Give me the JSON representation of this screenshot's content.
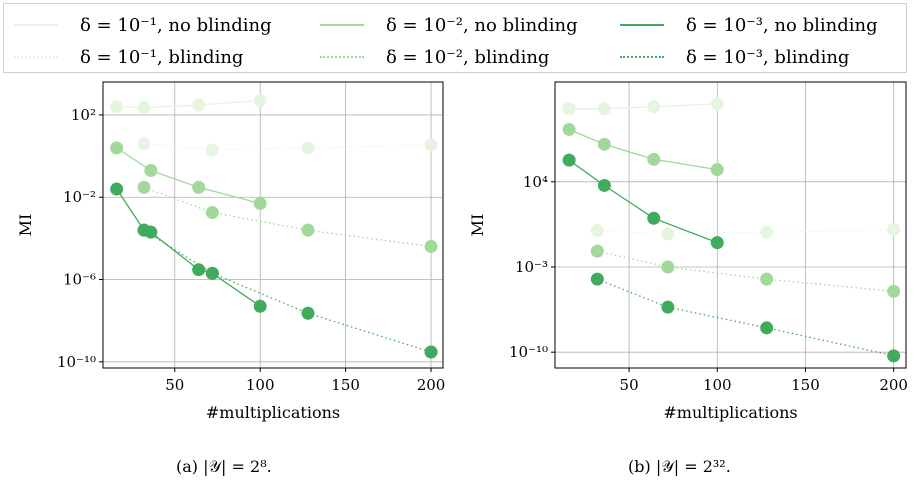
{
  "legend": {
    "items": [
      {
        "label": "δ = 10⁻¹, no blinding",
        "color": "#e5f5e0",
        "style": "solid"
      },
      {
        "label": "δ = 10⁻², no blinding",
        "color": "#a1d99b",
        "style": "solid"
      },
      {
        "label": "δ = 10⁻³, no blinding",
        "color": "#41ab5d",
        "style": "solid"
      },
      {
        "label": "δ = 10⁻¹, blinding",
        "color": "#e5f5e0",
        "style": "dotted"
      },
      {
        "label": "δ = 10⁻², blinding",
        "color": "#a1d99b",
        "style": "dotted"
      },
      {
        "label": "δ = 10⁻³, blinding",
        "color": "#41ab5d",
        "style": "dotted"
      }
    ]
  },
  "captions": {
    "a": "(a) |𝒴| = 2⁸.",
    "b": "(b) |𝒴| = 2³².",
    "a_label": "(a)",
    "b_label": "(b)"
  },
  "chart_data": [
    {
      "type": "line",
      "id": "a",
      "xlabel": "#multiplications",
      "ylabel": "MI",
      "xlim": [
        8,
        207
      ],
      "ylim_log10": [
        -10.3,
        3.6
      ],
      "y_scale": "log",
      "xticks": [
        50,
        100,
        150,
        200
      ],
      "yticks": [
        {
          "exp": 2,
          "label": "10²"
        },
        {
          "exp": -2,
          "label": "10⁻²"
        },
        {
          "exp": -6,
          "label": "10⁻⁶"
        },
        {
          "exp": -10,
          "label": "10⁻¹⁰"
        }
      ],
      "grid": true,
      "series": [
        {
          "name": "δ = 10⁻¹, no blinding",
          "color": "#e5f5e0",
          "style": "solid",
          "x": [
            16,
            32,
            64,
            100
          ],
          "y": [
            "2.5e2",
            "2.3e2",
            "3e2",
            "5e2"
          ]
        },
        {
          "name": "δ = 10⁻¹, blinding",
          "color": "#e5f5e0",
          "style": "dotted",
          "x": [
            32,
            72,
            128,
            200
          ],
          "y": [
            "4",
            "2",
            "2.5",
            "3.5"
          ]
        },
        {
          "name": "δ = 10⁻², no blinding",
          "color": "#a1d99b",
          "style": "solid",
          "x": [
            16,
            36,
            64,
            100
          ],
          "y": [
            "2.5",
            "0.2",
            "0.03",
            "0.005"
          ]
        },
        {
          "name": "δ = 10⁻², blinding",
          "color": "#a1d99b",
          "style": "dotted",
          "x": [
            32,
            72,
            128,
            200
          ],
          "y": [
            "0.03",
            "0.0018",
            "2.5e-4",
            "4e-5"
          ]
        },
        {
          "name": "δ = 10⁻³, no blinding",
          "color": "#41ab5d",
          "style": "solid",
          "x": [
            16,
            32,
            36,
            64,
            72,
            100
          ],
          "y": [
            "0.025",
            "2.5e-4",
            "2e-4",
            "3e-6",
            "2e-6",
            "5e-8"
          ]
        },
        {
          "name": "δ = 10⁻³, blinding",
          "color": "#41ab5d",
          "style": "dotted",
          "x": [
            32,
            72,
            128,
            200
          ],
          "y": [
            "2.5e-4",
            "2e-6",
            "2.3e-8",
            "3e-10"
          ]
        }
      ]
    },
    {
      "type": "line",
      "id": "b",
      "xlabel": "#multiplications",
      "ylabel": "MI",
      "xlim": [
        8,
        207
      ],
      "ylim_log10": [
        -11.3,
        12.2
      ],
      "y_scale": "log",
      "xticks": [
        50,
        100,
        150,
        200
      ],
      "yticks": [
        {
          "exp": 4,
          "label": "10⁴"
        },
        {
          "exp": -3,
          "label": "10⁻³"
        },
        {
          "exp": -10,
          "label": "10⁻¹⁰"
        }
      ],
      "grid": true,
      "series": [
        {
          "name": "δ = 10⁻¹, no blinding",
          "color": "#e5f5e0",
          "style": "solid",
          "x": [
            16,
            36,
            64,
            100
          ],
          "y": [
            "1e10",
            "1e10",
            "1.5e10",
            "2.5e10"
          ]
        },
        {
          "name": "δ = 10⁻¹, blinding",
          "color": "#e5f5e0",
          "style": "dotted",
          "x": [
            32,
            72,
            128,
            200
          ],
          "y": [
            "1e0",
            "5e-1",
            "7e-1",
            "1.2e0"
          ]
        },
        {
          "name": "δ = 10⁻², no blinding",
          "color": "#a1d99b",
          "style": "solid",
          "x": [
            16,
            36,
            64,
            100
          ],
          "y": [
            "2e8",
            "1.2e7",
            "7e5",
            "1e5"
          ]
        },
        {
          "name": "δ = 10⁻², blinding",
          "color": "#a1d99b",
          "style": "dotted",
          "x": [
            32,
            72,
            128,
            200
          ],
          "y": [
            "2e-2",
            "1e-3",
            "1e-4",
            "1e-5"
          ]
        },
        {
          "name": "δ = 10⁻³, no blinding",
          "color": "#41ab5d",
          "style": "solid",
          "x": [
            16,
            36,
            64,
            100
          ],
          "y": [
            "6e5",
            "5e3",
            "1e1",
            "1e-1"
          ]
        },
        {
          "name": "δ = 10⁻³, blinding",
          "color": "#41ab5d",
          "style": "dotted",
          "x": [
            32,
            72,
            128,
            200
          ],
          "y": [
            "1e-4",
            "5e-7",
            "1e-8",
            "5e-11"
          ]
        }
      ]
    }
  ]
}
